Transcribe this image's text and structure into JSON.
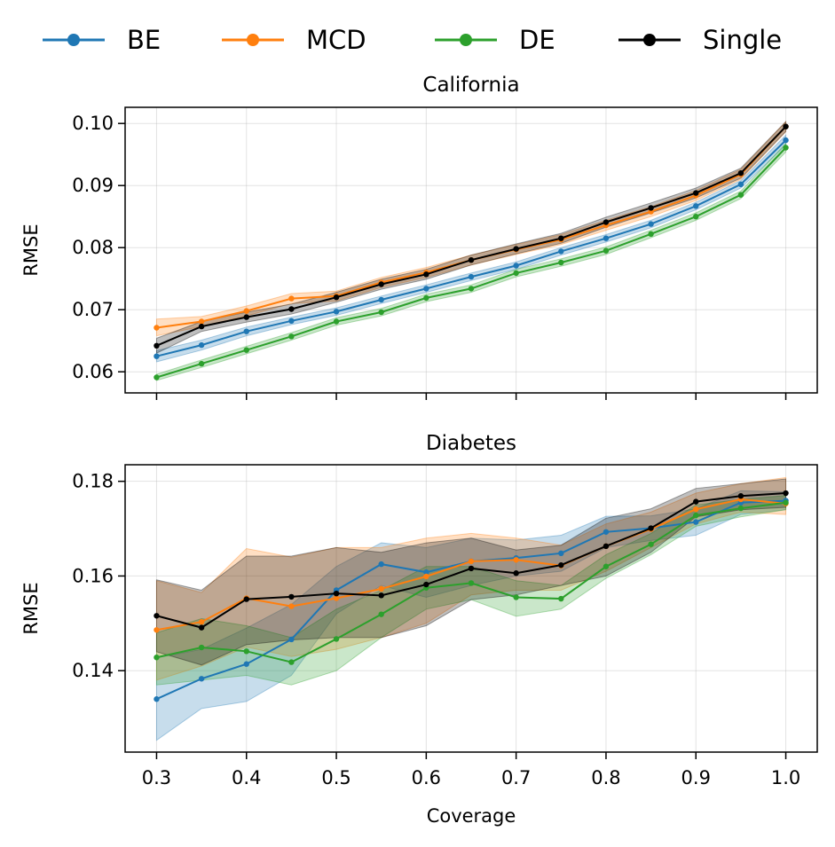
{
  "chart_data": [
    {
      "type": "line",
      "title": "California",
      "xlabel": "",
      "ylabel": "RMSE",
      "xlim": [
        0.265,
        1.035
      ],
      "ylim": [
        0.0566,
        0.1026
      ],
      "xticks": [
        0.3,
        0.4,
        0.5,
        0.6,
        0.7,
        0.8,
        0.9,
        1.0
      ],
      "xtick_labels": [
        "0.3",
        "0.4",
        "0.5",
        "0.6",
        "0.7",
        "0.8",
        "0.9",
        "1.0"
      ],
      "show_xtick_labels": false,
      "yticks": [
        0.06,
        0.07,
        0.08,
        0.09,
        0.1
      ],
      "ytick_labels": [
        "0.06",
        "0.07",
        "0.08",
        "0.09",
        "0.10"
      ],
      "grid": true,
      "x": [
        0.3,
        0.35,
        0.4,
        0.45,
        0.5,
        0.55,
        0.6,
        0.65,
        0.7,
        0.75,
        0.8,
        0.85,
        0.9,
        0.95,
        1.0
      ],
      "series": [
        {
          "name": "BE",
          "color": "#1f77b4",
          "values": [
            0.0625,
            0.0643,
            0.0665,
            0.0682,
            0.0697,
            0.0716,
            0.0734,
            0.0753,
            0.0771,
            0.0794,
            0.0815,
            0.0838,
            0.0867,
            0.0902,
            0.0973
          ],
          "lower": [
            0.0616,
            0.0635,
            0.0658,
            0.0676,
            0.0691,
            0.071,
            0.0728,
            0.0747,
            0.0765,
            0.0788,
            0.0809,
            0.0832,
            0.0861,
            0.0896,
            0.0965
          ],
          "upper": [
            0.0634,
            0.0651,
            0.0672,
            0.0688,
            0.0703,
            0.0722,
            0.074,
            0.0759,
            0.0777,
            0.08,
            0.0821,
            0.0844,
            0.0873,
            0.0908,
            0.0981
          ]
        },
        {
          "name": "MCD",
          "color": "#ff7f0e",
          "values": [
            0.0671,
            0.0681,
            0.0698,
            0.0718,
            0.0722,
            0.0744,
            0.076,
            0.078,
            0.0797,
            0.0813,
            0.0836,
            0.0858,
            0.0884,
            0.0918,
            0.0995
          ],
          "lower": [
            0.0658,
            0.0673,
            0.069,
            0.071,
            0.0714,
            0.0736,
            0.0752,
            0.0772,
            0.0789,
            0.0805,
            0.0828,
            0.085,
            0.0876,
            0.091,
            0.0987
          ],
          "upper": [
            0.0685,
            0.0689,
            0.0706,
            0.0726,
            0.073,
            0.0752,
            0.0768,
            0.0788,
            0.0805,
            0.0821,
            0.0844,
            0.0866,
            0.0892,
            0.0926,
            0.1003
          ]
        },
        {
          "name": "DE",
          "color": "#2ca02c",
          "values": [
            0.0591,
            0.0613,
            0.0635,
            0.0657,
            0.0681,
            0.0696,
            0.0719,
            0.0734,
            0.0759,
            0.0776,
            0.0795,
            0.0822,
            0.085,
            0.0885,
            0.0961
          ],
          "lower": [
            0.0586,
            0.0607,
            0.0629,
            0.0651,
            0.0675,
            0.069,
            0.0713,
            0.0728,
            0.0753,
            0.077,
            0.0789,
            0.0816,
            0.0844,
            0.0879,
            0.0954
          ],
          "upper": [
            0.0596,
            0.0619,
            0.0641,
            0.0663,
            0.0687,
            0.0702,
            0.0725,
            0.074,
            0.0765,
            0.0782,
            0.0801,
            0.0828,
            0.0856,
            0.0891,
            0.0968
          ]
        },
        {
          "name": "Single",
          "color": "#000000",
          "values": [
            0.0642,
            0.0673,
            0.0688,
            0.0701,
            0.072,
            0.0741,
            0.0757,
            0.078,
            0.0798,
            0.0815,
            0.0841,
            0.0864,
            0.0888,
            0.092,
            0.0995
          ],
          "lower": [
            0.063,
            0.0665,
            0.068,
            0.0693,
            0.0712,
            0.0733,
            0.0749,
            0.0772,
            0.079,
            0.0807,
            0.0833,
            0.0856,
            0.088,
            0.0912,
            0.0987
          ],
          "upper": [
            0.0654,
            0.0681,
            0.0696,
            0.0709,
            0.0728,
            0.0749,
            0.0765,
            0.0788,
            0.0806,
            0.0823,
            0.0849,
            0.0872,
            0.0896,
            0.0928,
            0.1003
          ]
        }
      ]
    },
    {
      "type": "line",
      "title": "Diabetes",
      "xlabel": "Coverage",
      "ylabel": "RMSE",
      "xlim": [
        0.265,
        1.035
      ],
      "ylim": [
        0.1228,
        0.1835
      ],
      "xticks": [
        0.3,
        0.4,
        0.5,
        0.6,
        0.7,
        0.8,
        0.9,
        1.0
      ],
      "xtick_labels": [
        "0.3",
        "0.4",
        "0.5",
        "0.6",
        "0.7",
        "0.8",
        "0.9",
        "1.0"
      ],
      "show_xtick_labels": true,
      "yticks": [
        0.14,
        0.16,
        0.18
      ],
      "ytick_labels": [
        "0.14",
        "0.16",
        "0.18"
      ],
      "grid": true,
      "x": [
        0.3,
        0.35,
        0.4,
        0.45,
        0.5,
        0.55,
        0.6,
        0.65,
        0.7,
        0.75,
        0.8,
        0.85,
        0.9,
        0.95,
        1.0
      ],
      "series": [
        {
          "name": "BE",
          "color": "#1f77b4",
          "values": [
            0.134,
            0.1383,
            0.1414,
            0.1466,
            0.157,
            0.1625,
            0.1608,
            0.1631,
            0.1638,
            0.1648,
            0.1693,
            0.1701,
            0.1714,
            0.1755,
            0.1759
          ],
          "lower": [
            0.1253,
            0.132,
            0.1335,
            0.139,
            0.152,
            0.158,
            0.1555,
            0.158,
            0.16,
            0.161,
            0.166,
            0.1675,
            0.1686,
            0.173,
            0.174
          ],
          "upper": [
            0.1427,
            0.1445,
            0.149,
            0.154,
            0.162,
            0.167,
            0.166,
            0.168,
            0.1676,
            0.1686,
            0.1726,
            0.1727,
            0.1742,
            0.178,
            0.1778
          ]
        },
        {
          "name": "MCD",
          "color": "#ff7f0e",
          "values": [
            0.1486,
            0.1503,
            0.1553,
            0.1536,
            0.1553,
            0.1573,
            0.1599,
            0.1631,
            0.1634,
            0.1622,
            0.1663,
            0.1699,
            0.1741,
            0.1762,
            0.1753
          ],
          "lower": [
            0.138,
            0.141,
            0.145,
            0.143,
            0.1445,
            0.147,
            0.15,
            0.156,
            0.157,
            0.157,
            0.161,
            0.166,
            0.171,
            0.1735,
            0.173
          ],
          "upper": [
            0.159,
            0.1565,
            0.1658,
            0.164,
            0.166,
            0.166,
            0.168,
            0.169,
            0.168,
            0.1665,
            0.171,
            0.1735,
            0.1775,
            0.1795,
            0.1808
          ]
        },
        {
          "name": "DE",
          "color": "#2ca02c",
          "values": [
            0.1428,
            0.1449,
            0.1441,
            0.1418,
            0.1467,
            0.1519,
            0.1575,
            0.1585,
            0.1555,
            0.1552,
            0.162,
            0.1667,
            0.1728,
            0.1743,
            0.1755
          ],
          "lower": [
            0.137,
            0.138,
            0.139,
            0.137,
            0.14,
            0.147,
            0.153,
            0.155,
            0.1515,
            0.153,
            0.1595,
            0.1645,
            0.1705,
            0.1725,
            0.174
          ],
          "upper": [
            0.148,
            0.151,
            0.1495,
            0.147,
            0.153,
            0.157,
            0.162,
            0.162,
            0.159,
            0.158,
            0.1645,
            0.169,
            0.175,
            0.1762,
            0.177
          ]
        },
        {
          "name": "Single",
          "color": "#000000",
          "values": [
            0.1516,
            0.1491,
            0.1551,
            0.1556,
            0.1563,
            0.1559,
            0.1582,
            0.1616,
            0.1606,
            0.1623,
            0.1663,
            0.1701,
            0.1757,
            0.1769,
            0.1775
          ],
          "lower": [
            0.144,
            0.1412,
            0.1455,
            0.1465,
            0.147,
            0.147,
            0.1495,
            0.155,
            0.156,
            0.158,
            0.16,
            0.165,
            0.1725,
            0.174,
            0.1745
          ],
          "upper": [
            0.1592,
            0.157,
            0.1642,
            0.1642,
            0.166,
            0.165,
            0.167,
            0.168,
            0.1655,
            0.1665,
            0.1722,
            0.1742,
            0.1785,
            0.1795,
            0.1805
          ]
        }
      ]
    }
  ],
  "legend": {
    "placement": "top-center",
    "entries": [
      {
        "label": "BE",
        "color": "#1f77b4"
      },
      {
        "label": "MCD",
        "color": "#ff7f0e"
      },
      {
        "label": "DE",
        "color": "#2ca02c"
      },
      {
        "label": "Single",
        "color": "#000000"
      }
    ]
  }
}
